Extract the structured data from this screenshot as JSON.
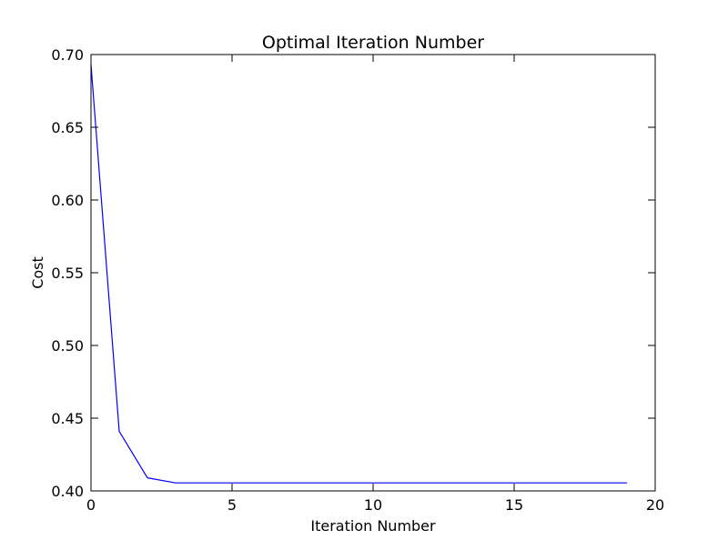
{
  "chart_data": {
    "type": "line",
    "title": "Optimal Iteration Number",
    "xlabel": "Iteration Number",
    "ylabel": "Cost",
    "xlim": [
      0,
      20
    ],
    "ylim": [
      0.4,
      0.7
    ],
    "xticks": [
      0,
      5,
      10,
      15,
      20
    ],
    "xtick_labels": [
      "0",
      "5",
      "10",
      "15",
      "20"
    ],
    "yticks": [
      0.4,
      0.45,
      0.5,
      0.55,
      0.6,
      0.65,
      0.7
    ],
    "ytick_labels": [
      "0.40",
      "0.45",
      "0.50",
      "0.55",
      "0.60",
      "0.65",
      "0.70"
    ],
    "grid": false,
    "series": [
      {
        "color": "#0000ff",
        "x": [
          0,
          1,
          2,
          3,
          4,
          5,
          6,
          7,
          8,
          9,
          10,
          11,
          12,
          13,
          14,
          15,
          16,
          17,
          18,
          19
        ],
        "y": [
          0.693,
          0.441,
          0.409,
          0.4055,
          0.4055,
          0.4055,
          0.4055,
          0.4055,
          0.4055,
          0.4055,
          0.4055,
          0.4055,
          0.4055,
          0.4055,
          0.4055,
          0.4055,
          0.4055,
          0.4055,
          0.4055,
          0.4055
        ]
      }
    ]
  }
}
